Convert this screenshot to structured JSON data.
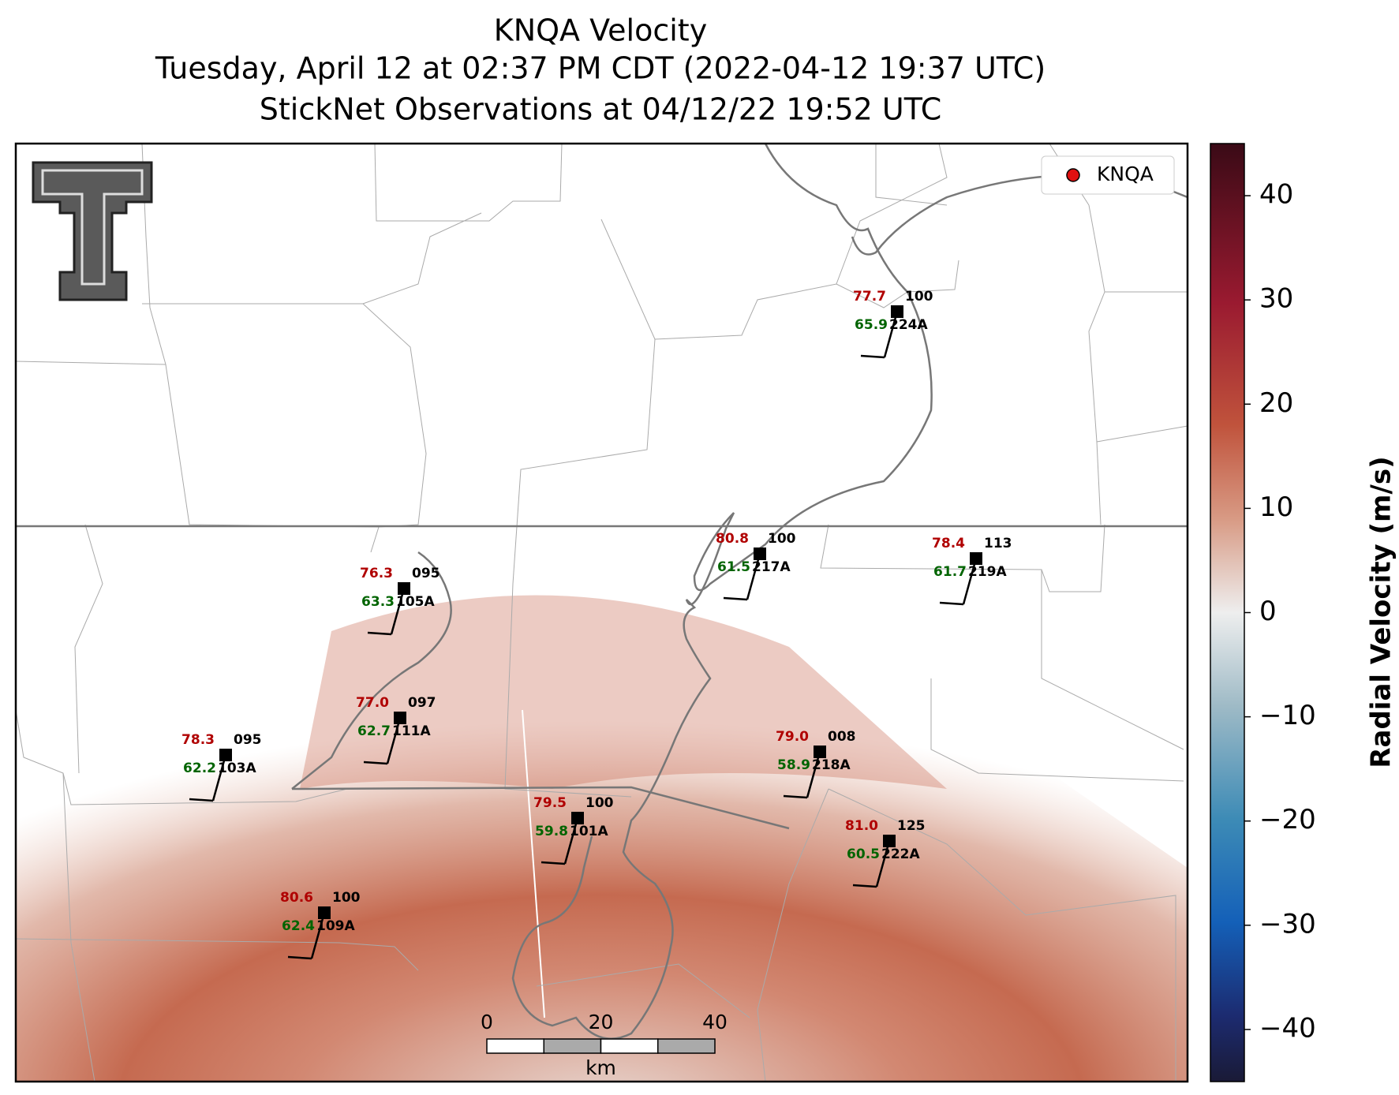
{
  "header": {
    "title": "KNQA Velocity",
    "subtitle": "Tuesday, April 12 at 02:37 PM CDT (2022-04-12 19:37 UTC)",
    "subtitle2": "StickNet Observations at 04/12/22 19:52 UTC"
  },
  "legend": {
    "label": "KNQA"
  },
  "stations": [
    {
      "id": "224A",
      "temp": "77.7",
      "pressure": "100",
      "dew": "65.9"
    },
    {
      "id": "217A",
      "temp": "80.8",
      "pressure": "100",
      "dew": "61.5"
    },
    {
      "id": "219A",
      "temp": "78.4",
      "pressure": "113",
      "dew": "61.7"
    },
    {
      "id": "105A",
      "temp": "76.3",
      "pressure": "095",
      "dew": "63.3"
    },
    {
      "id": "111A",
      "temp": "77.0",
      "pressure": "097",
      "dew": "62.7"
    },
    {
      "id": "103A",
      "temp": "78.3",
      "pressure": "095",
      "dew": "62.2"
    },
    {
      "id": "218A",
      "temp": "79.0",
      "pressure": "008",
      "dew": "58.9"
    },
    {
      "id": "101A",
      "temp": "79.5",
      "pressure": "100",
      "dew": "59.8"
    },
    {
      "id": "222A",
      "temp": "81.0",
      "pressure": "125",
      "dew": "60.5"
    },
    {
      "id": "109A",
      "temp": "80.6",
      "pressure": "100",
      "dew": "62.4"
    }
  ],
  "scale_bar": {
    "ticks": [
      0,
      20,
      40
    ],
    "lim": [
      0,
      40
    ],
    "unit": "km"
  },
  "colorbar": {
    "label": "Radial Velocity (m/s)",
    "lim": [
      -45,
      45
    ],
    "ticks": [
      {
        "value": -40,
        "label": "−40"
      },
      {
        "value": -30,
        "label": "−30"
      },
      {
        "value": -20,
        "label": "−20"
      },
      {
        "value": -10,
        "label": "−10"
      },
      0,
      10,
      20,
      30,
      40
    ]
  }
}
